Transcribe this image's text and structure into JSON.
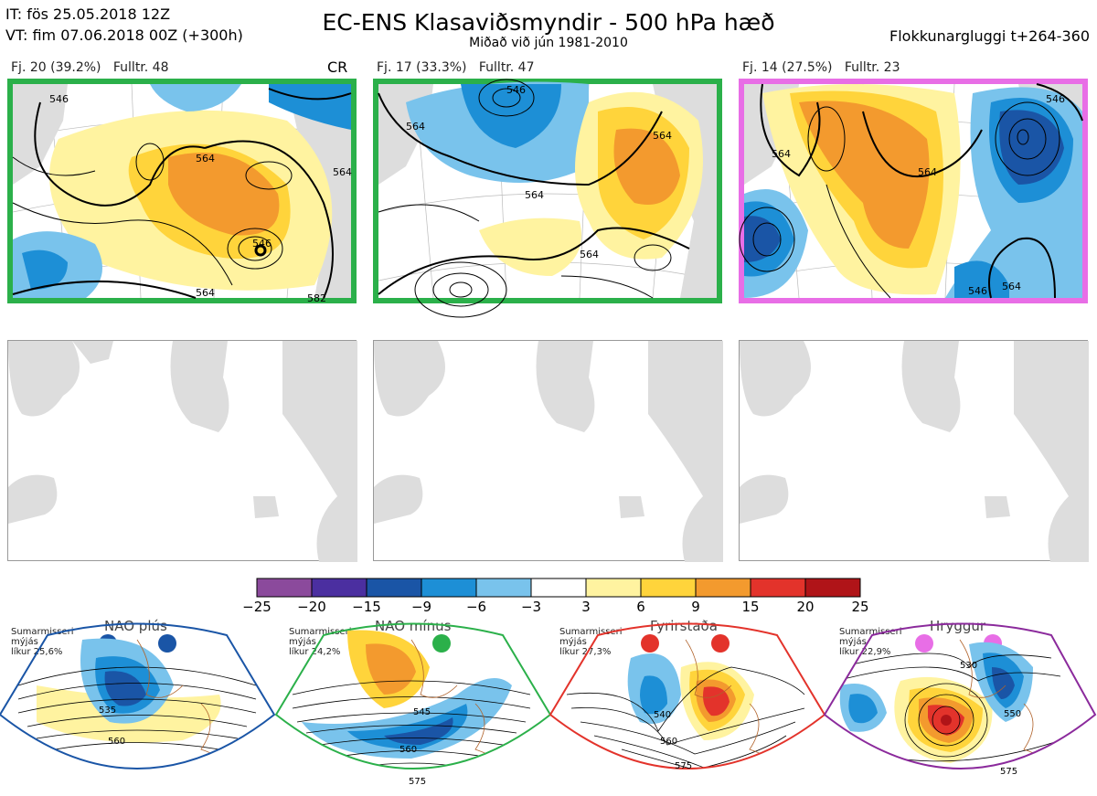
{
  "header": {
    "it": "IT: fös 25.05.2018 12Z",
    "vt": "VT: fim 07.06.2018 00Z  (+300h)",
    "title": "EC-ENS Klasaviðsmyndir - 500 hPa hæð",
    "subtitle": "Miðað við jún 1981-2010",
    "window": "Flokkunargluggi t+264-360"
  },
  "clusters": [
    {
      "label": "Fj. 20 (39.2%)",
      "fulltr": "Fulltr. 48",
      "tag": "CR",
      "border_color": "#2bb04a"
    },
    {
      "label": "Fj. 17 (33.3%)",
      "fulltr": "Fulltr. 47",
      "tag": "",
      "border_color": "#2bb04a"
    },
    {
      "label": "Fj. 14 (27.5%)",
      "fulltr": "Fulltr. 23",
      "tag": "",
      "border_color": "#e86ee6"
    }
  ],
  "contour_labels": {
    "p1": [
      "546",
      "564",
      "564",
      "546",
      "564",
      "582"
    ],
    "p2": [
      "546",
      "564",
      "564",
      "564",
      "564"
    ],
    "p3": [
      "546",
      "564",
      "564",
      "546",
      "564"
    ]
  },
  "colorbar": {
    "ticks": [
      "−25",
      "−20",
      "−15",
      "−9",
      "−6",
      "−3",
      "3",
      "6",
      "9",
      "15",
      "20",
      "25"
    ],
    "colors": [
      "#8b4a9c",
      "#4b2fa0",
      "#1a55a6",
      "#1d8fd6",
      "#79c3ec",
      "#ffffff",
      "#fff3a0",
      "#ffd43b",
      "#f39a2e",
      "#e3332b",
      "#b01418"
    ]
  },
  "regimes": [
    {
      "name": "NAO plús",
      "season": "Sumarmisseri",
      "mean": "mýjás",
      "prob": "líkur 25,6%",
      "color": "#1a55a6",
      "labels": [
        "535",
        "560"
      ]
    },
    {
      "name": "NAO mínus",
      "season": "Sumarmisseri",
      "mean": "mýjás",
      "prob": "líkur 24,2%",
      "color": "#2bb04a",
      "labels": [
        "545",
        "560",
        "575"
      ]
    },
    {
      "name": "Fyrirstaða",
      "season": "Sumarmisseri",
      "mean": "mýjás",
      "prob": "líkur 27,3%",
      "color": "#e3332b",
      "labels": [
        "540",
        "560",
        "575"
      ]
    },
    {
      "name": "Hryggur",
      "season": "Sumarmisseri",
      "mean": "mýjás",
      "prob": "líkur 22,9%",
      "color": "#e86ee6",
      "labels": [
        "530",
        "550",
        "575"
      ]
    }
  ]
}
